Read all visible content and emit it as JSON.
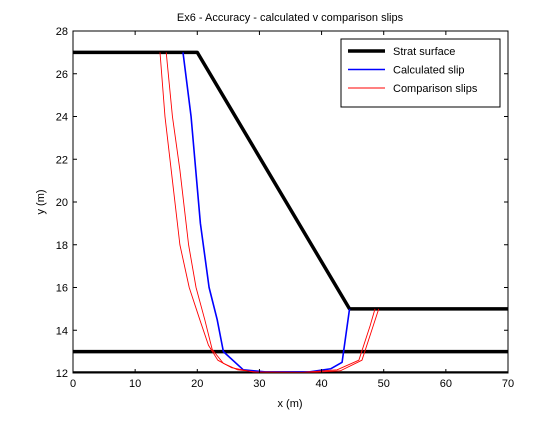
{
  "chart_data": {
    "type": "line",
    "title": "Ex6 - Accuracy - calculated v comparison slips",
    "xlabel": "x (m)",
    "ylabel": "y (m)",
    "xlim": [
      0,
      70
    ],
    "ylim": [
      12,
      28
    ],
    "xticks": [
      0,
      10,
      20,
      30,
      40,
      50,
      60,
      70
    ],
    "yticks": [
      12,
      14,
      16,
      18,
      20,
      22,
      24,
      26,
      28
    ],
    "grid": false,
    "legend_position": "top-right",
    "series": [
      {
        "name": "Strat surface",
        "color": "#000000",
        "style": "thick",
        "segments": [
          [
            [
              0,
              27
            ],
            [
              20,
              27
            ],
            [
              44.5,
              15
            ],
            [
              70,
              15
            ]
          ],
          [
            [
              0,
              13
            ],
            [
              70,
              13
            ]
          ],
          [
            [
              0,
              12
            ],
            [
              70,
              12
            ]
          ]
        ]
      },
      {
        "name": "Calculated slip",
        "color": "#0000ff",
        "style": "medium",
        "segments": [
          [
            [
              17.7,
              27
            ],
            [
              19,
              24
            ],
            [
              20.5,
              19
            ],
            [
              21.9,
              16
            ],
            [
              23.2,
              14.5
            ],
            [
              24.2,
              13
            ],
            [
              27.4,
              12.15
            ],
            [
              31,
              12.05
            ],
            [
              38,
              12.05
            ],
            [
              41.5,
              12.2
            ],
            [
              43.3,
              12.5
            ],
            [
              44.5,
              15
            ]
          ]
        ]
      },
      {
        "name": "Comparison slips",
        "color": "#ff0000",
        "style": "thin",
        "segments": [
          [
            [
              14,
              27
            ],
            [
              14.8,
              24
            ],
            [
              15.8,
              21.5
            ],
            [
              17.2,
              18
            ],
            [
              18.7,
              16
            ],
            [
              20.4,
              14.5
            ],
            [
              21.8,
              13.3
            ],
            [
              23.3,
              12.6
            ],
            [
              25.5,
              12.25
            ],
            [
              29,
              12.05
            ],
            [
              37,
              12.03
            ],
            [
              42.5,
              12.15
            ],
            [
              46,
              12.6
            ],
            [
              47.8,
              14.2
            ],
            [
              48.6,
              15
            ]
          ],
          [
            [
              15,
              27
            ],
            [
              16,
              24
            ],
            [
              17.2,
              21.5
            ],
            [
              18.6,
              18
            ],
            [
              19.8,
              16
            ],
            [
              21.2,
              14.5
            ],
            [
              22.4,
              13.1
            ],
            [
              24.2,
              12.45
            ],
            [
              26.5,
              12.15
            ],
            [
              30,
              12.03
            ],
            [
              37,
              12.01
            ],
            [
              43,
              12.1
            ],
            [
              46.5,
              12.6
            ],
            [
              48.3,
              14.2
            ],
            [
              49.2,
              15
            ]
          ]
        ]
      }
    ]
  }
}
